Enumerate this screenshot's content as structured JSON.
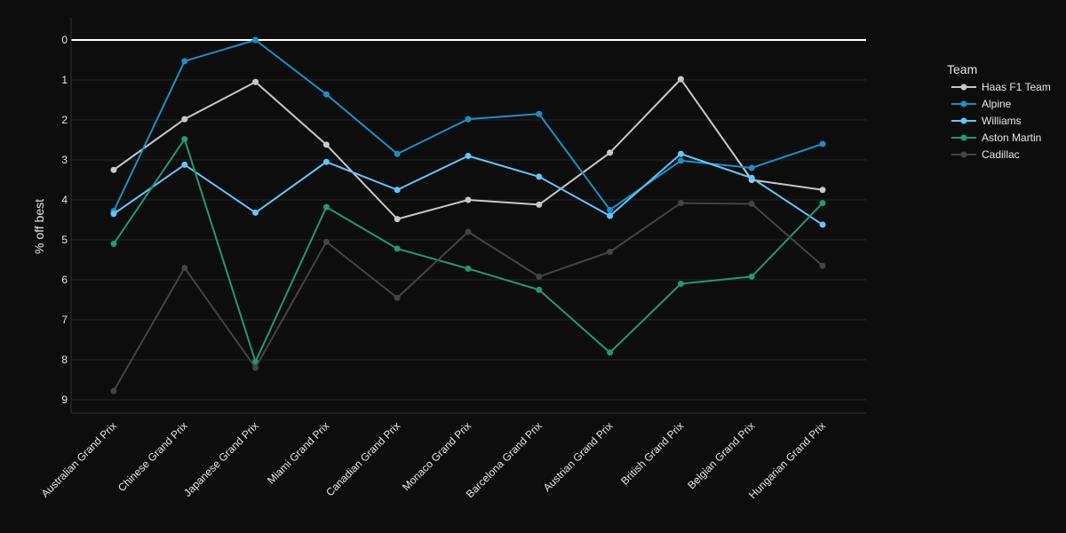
{
  "chart_data": {
    "type": "line",
    "ylabel": "% off best",
    "y_reversed": true,
    "ylim": [
      0,
      9
    ],
    "yticks": [
      0,
      1,
      2,
      3,
      4,
      5,
      6,
      7,
      8,
      9
    ],
    "grid": true,
    "zero_line": true,
    "legend_title": "Team",
    "legend_position": "right",
    "categories": [
      "Australian Grand Prix",
      "Chinese Grand Prix",
      "Japanese Grand Prix",
      "Miami Grand Prix",
      "Canadian Grand Prix",
      "Monaco Grand Prix",
      "Barcelona Grand Prix",
      "Austrian Grand Prix",
      "British Grand Prix",
      "Belgian Grand Prix",
      "Hungarian Grand Prix"
    ],
    "series": [
      {
        "name": "Haas F1 Team",
        "color": "#c8c8c8",
        "values": [
          3.25,
          1.98,
          1.05,
          2.62,
          4.48,
          4.0,
          4.12,
          2.82,
          0.98,
          3.5,
          3.75
        ]
      },
      {
        "name": "Alpine",
        "color": "#1b8fc6",
        "values": [
          4.28,
          0.53,
          0.0,
          1.36,
          2.85,
          1.98,
          1.85,
          4.25,
          3.02,
          3.2,
          2.6
        ]
      },
      {
        "name": "Williams",
        "color": "#64c4ff",
        "values": [
          4.35,
          3.12,
          4.32,
          3.05,
          3.75,
          2.9,
          3.42,
          4.4,
          2.85,
          3.45,
          4.62
        ]
      },
      {
        "name": "Aston Martin",
        "color": "#229971",
        "values": [
          5.1,
          2.48,
          8.05,
          4.18,
          5.22,
          5.72,
          6.25,
          7.82,
          6.1,
          5.92,
          4.08
        ]
      },
      {
        "name": "Cadillac",
        "color": "#444444",
        "values": [
          8.78,
          5.7,
          8.2,
          5.05,
          6.45,
          4.8,
          5.92,
          5.3,
          4.08,
          4.1,
          5.65
        ]
      }
    ]
  }
}
